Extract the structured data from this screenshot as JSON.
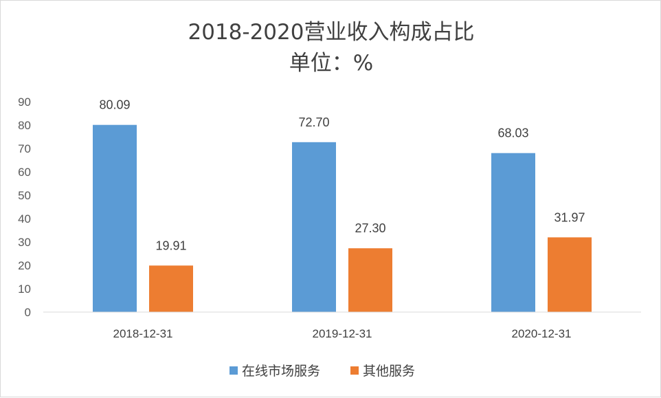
{
  "chart_data": {
    "type": "bar",
    "title": "2018-2020营业收入构成占比",
    "subtitle": "单位：%",
    "categories": [
      "2018-12-31",
      "2019-12-31",
      "2020-12-31"
    ],
    "series": [
      {
        "name": "在线市场服务",
        "values": [
          80.09,
          72.7,
          68.03
        ],
        "labels": [
          "80.09",
          "72.70",
          "68.03"
        ],
        "color": "#5b9bd5"
      },
      {
        "name": "其他服务",
        "values": [
          19.91,
          27.3,
          31.97
        ],
        "labels": [
          "19.91",
          "27.30",
          "31.97"
        ],
        "color": "#ed7d31"
      }
    ],
    "y_ticks": [
      "0",
      "10",
      "20",
      "30",
      "40",
      "50",
      "60",
      "70",
      "80",
      "90"
    ],
    "ylim": [
      0,
      90
    ],
    "xlabel": "",
    "ylabel": "",
    "grid": false,
    "legend_position": "bottom"
  }
}
